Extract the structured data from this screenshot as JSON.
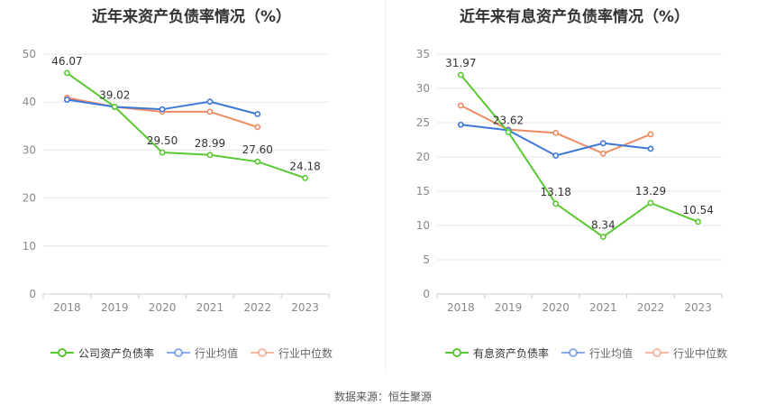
{
  "source_text": "数据来源：恒生聚源",
  "chart_data": [
    {
      "type": "line",
      "title": "近年来资产负债率情况（%）",
      "x": [
        "2018",
        "2019",
        "2020",
        "2021",
        "2022",
        "2023"
      ],
      "ylim": [
        0,
        50
      ],
      "yticks": [
        0,
        10,
        20,
        30,
        40,
        50
      ],
      "grid": true,
      "legend_position": "bottom",
      "series": [
        {
          "name": "公司资产负债率",
          "color": "#5ac832",
          "values": [
            46.07,
            39.02,
            29.5,
            28.99,
            27.6,
            24.18
          ],
          "labels": [
            "46.07",
            "39.02",
            "29.50",
            "28.99",
            "27.60",
            "24.18"
          ]
        },
        {
          "name": "行业均值",
          "color": "#3c78d8",
          "values": [
            40.5,
            39.0,
            38.5,
            40.1,
            37.5,
            null
          ]
        },
        {
          "name": "行业中位数",
          "color": "#f08c64",
          "values": [
            40.9,
            39.0,
            38.0,
            38.0,
            34.8,
            null
          ]
        }
      ]
    },
    {
      "type": "line",
      "title": "近年来有息资产负债率情况（%）",
      "x": [
        "2018",
        "2019",
        "2020",
        "2021",
        "2022",
        "2023"
      ],
      "ylim": [
        0,
        35
      ],
      "yticks": [
        0,
        5,
        10,
        15,
        20,
        25,
        30,
        35
      ],
      "grid": true,
      "legend_position": "bottom",
      "series": [
        {
          "name": "有息资产负债率",
          "color": "#5ac832",
          "values": [
            31.97,
            23.62,
            13.18,
            8.34,
            13.29,
            10.54
          ],
          "labels": [
            "31.97",
            "23.62",
            "13.18",
            "8.34",
            "13.29",
            "10.54"
          ]
        },
        {
          "name": "行业均值",
          "color": "#3c78d8",
          "values": [
            24.7,
            23.9,
            20.2,
            22.0,
            21.2,
            null
          ]
        },
        {
          "name": "行业中位数",
          "color": "#f08c64",
          "values": [
            27.5,
            24.0,
            23.5,
            20.5,
            23.3,
            null
          ]
        }
      ]
    }
  ]
}
